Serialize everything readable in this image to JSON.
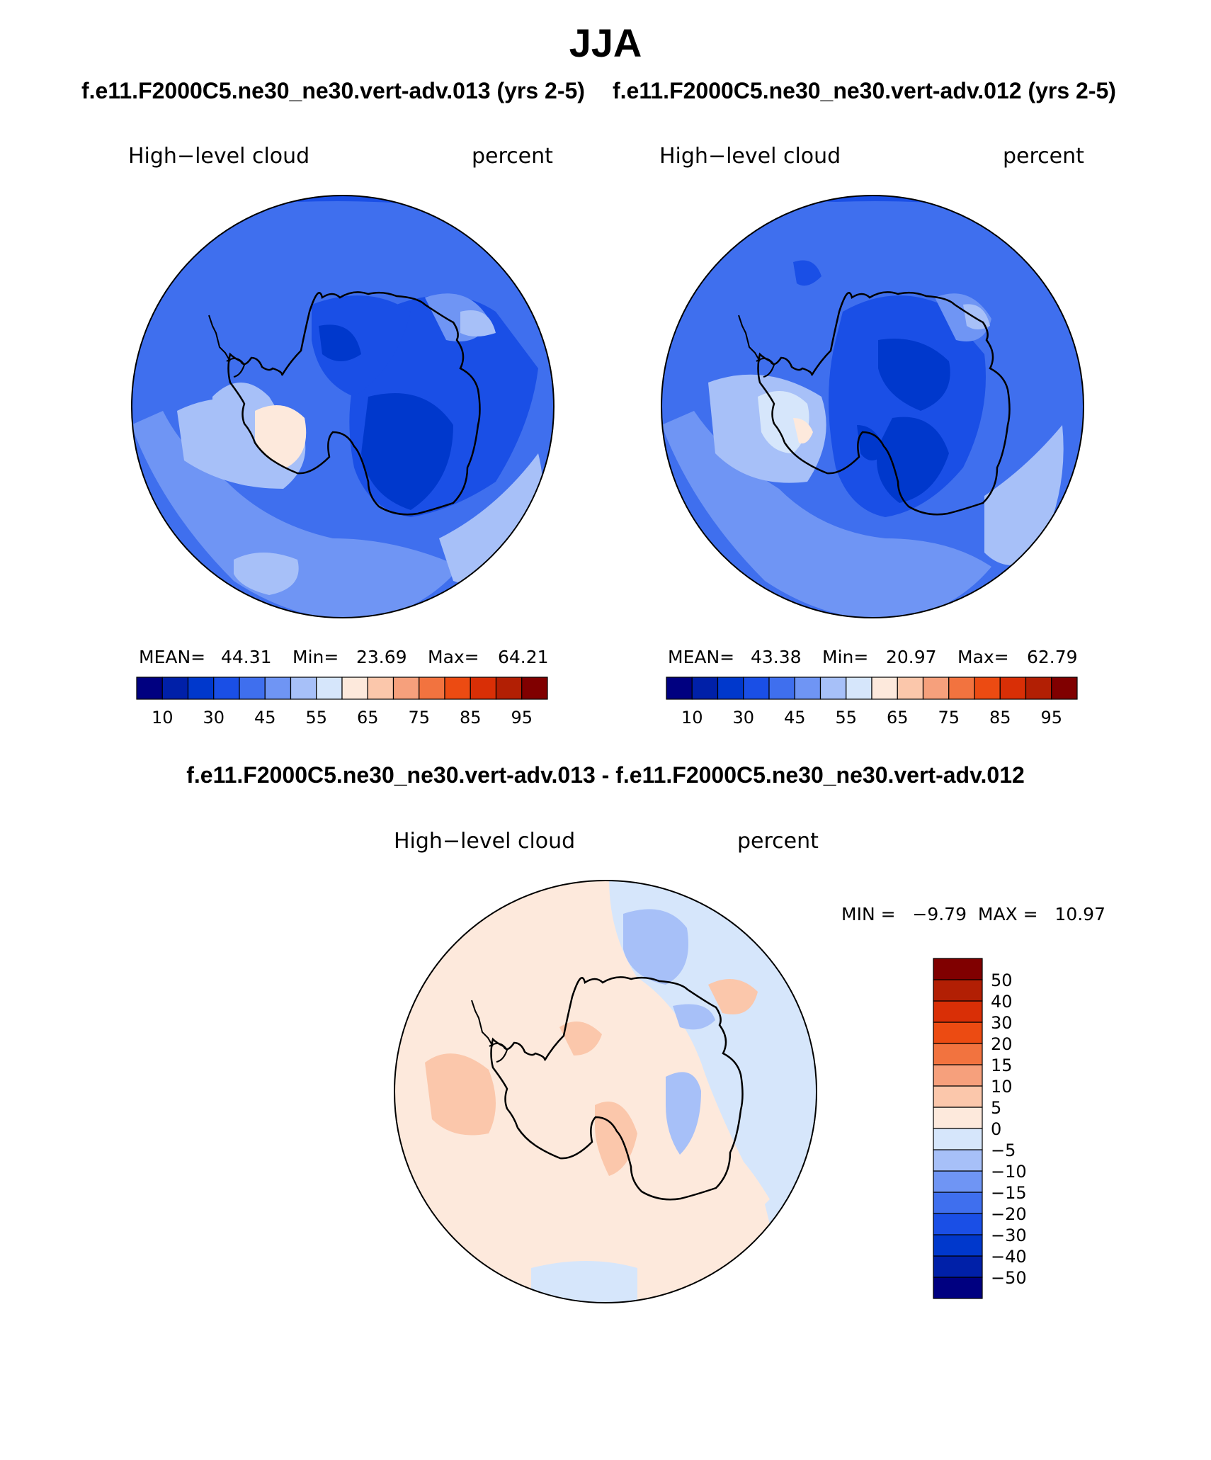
{
  "figure": {
    "title": "JJA",
    "case_left": "f.e11.F2000C5.ne30_ne30.vert-adv.013 (yrs 2-5)",
    "case_right": "f.e11.F2000C5.ne30_ne30.vert-adv.012 (yrs 2-5)",
    "diff_title": "f.e11.F2000C5.ne30_ne30.vert-adv.013 - f.e11.F2000C5.ne30_ne30.vert-adv.012"
  },
  "panels": {
    "left": {
      "variable": "High−level cloud",
      "units": "percent",
      "mean_label": "MEAN=",
      "mean": "44.31",
      "min_label": "Min=",
      "min": "23.69",
      "max_label": "Max=",
      "max": "64.21"
    },
    "right": {
      "variable": "High−level cloud",
      "units": "percent",
      "mean_label": "MEAN=",
      "mean": "43.38",
      "min_label": "Min=",
      "min": "20.97",
      "max_label": "Max=",
      "max": "62.79"
    },
    "diff": {
      "variable": "High−level cloud",
      "units": "percent",
      "minmax": "MIN =   −9.79  MAX =   10.97"
    }
  },
  "colorbars": {
    "main": {
      "colors": [
        "#000080",
        "#0020a8",
        "#0038cc",
        "#1a4fe6",
        "#3f6fee",
        "#6f95f4",
        "#a7c0f8",
        "#d6e6fb",
        "#fde9dc",
        "#fbc7ab",
        "#f6a07c",
        "#f2733f",
        "#ec4b12",
        "#d92f06",
        "#b21f04",
        "#800000"
      ],
      "labels": [
        "10",
        "30",
        "45",
        "55",
        "65",
        "75",
        "85",
        "95"
      ]
    },
    "diff": {
      "colors": [
        "#000080",
        "#0020a8",
        "#0038cc",
        "#1a4fe6",
        "#3f6fee",
        "#6f95f4",
        "#a7c0f8",
        "#d6e6fb",
        "#fde9dc",
        "#fbc7ab",
        "#f6a07c",
        "#f2733f",
        "#ec4b12",
        "#d92f06",
        "#b21f04",
        "#800000"
      ],
      "labels": [
        "50",
        "40",
        "30",
        "20",
        "15",
        "10",
        "5",
        "0",
        "−5",
        "−10",
        "−15",
        "−20",
        "−30",
        "−40",
        "−50"
      ]
    }
  }
}
